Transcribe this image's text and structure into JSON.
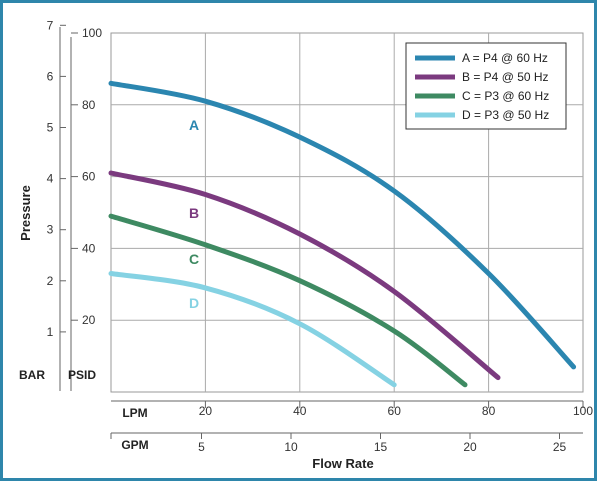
{
  "chart_data": {
    "type": "line",
    "title": "",
    "xlabel": "Flow Rate",
    "ylabel": "Pressure",
    "x_unit_primary": "LPM",
    "x_unit_secondary": "GPM",
    "y_unit_primary": "PSID",
    "y_unit_secondary": "BAR",
    "xlim": [
      0,
      100
    ],
    "ylim": [
      0,
      100
    ],
    "x_ticks": [
      "20",
      "40",
      "60",
      "80",
      "100"
    ],
    "x_ticks_values": [
      20,
      40,
      60,
      80,
      100
    ],
    "gpm_ticks": [
      "5",
      "10",
      "15",
      "20",
      "25"
    ],
    "gpm_ticks_values": [
      5,
      10,
      15,
      20,
      25
    ],
    "y_ticks": [
      "20",
      "40",
      "60",
      "80",
      "100"
    ],
    "y_ticks_values": [
      20,
      40,
      60,
      80,
      100
    ],
    "bar_ticks": [
      "1",
      "2",
      "3",
      "4",
      "5",
      "6",
      "7"
    ],
    "bar_ticks_values": [
      1,
      2,
      3,
      4,
      5,
      6,
      7
    ],
    "grid": true,
    "legend_position": "top-right",
    "series": [
      {
        "name": "A = P4 @ 60 Hz",
        "label": "A",
        "color": "#2b86b0",
        "x": [
          0,
          20,
          40,
          60,
          80,
          98
        ],
        "y": [
          86,
          81,
          71,
          56,
          33,
          7
        ]
      },
      {
        "name": "B = P4 @ 50 Hz",
        "label": "B",
        "color": "#7b3a7f",
        "x": [
          0,
          20,
          40,
          60,
          82
        ],
        "y": [
          61,
          55,
          44,
          28,
          4
        ]
      },
      {
        "name": "C = P3 @ 60 Hz",
        "label": "C",
        "color": "#3e8a62",
        "x": [
          0,
          20,
          40,
          60,
          75
        ],
        "y": [
          49,
          41,
          31,
          17,
          2
        ]
      },
      {
        "name": "D = P3 @ 50 Hz",
        "label": "D",
        "color": "#85d2e3",
        "x": [
          0,
          20,
          40,
          60
        ],
        "y": [
          33,
          29,
          19,
          2
        ]
      }
    ]
  }
}
